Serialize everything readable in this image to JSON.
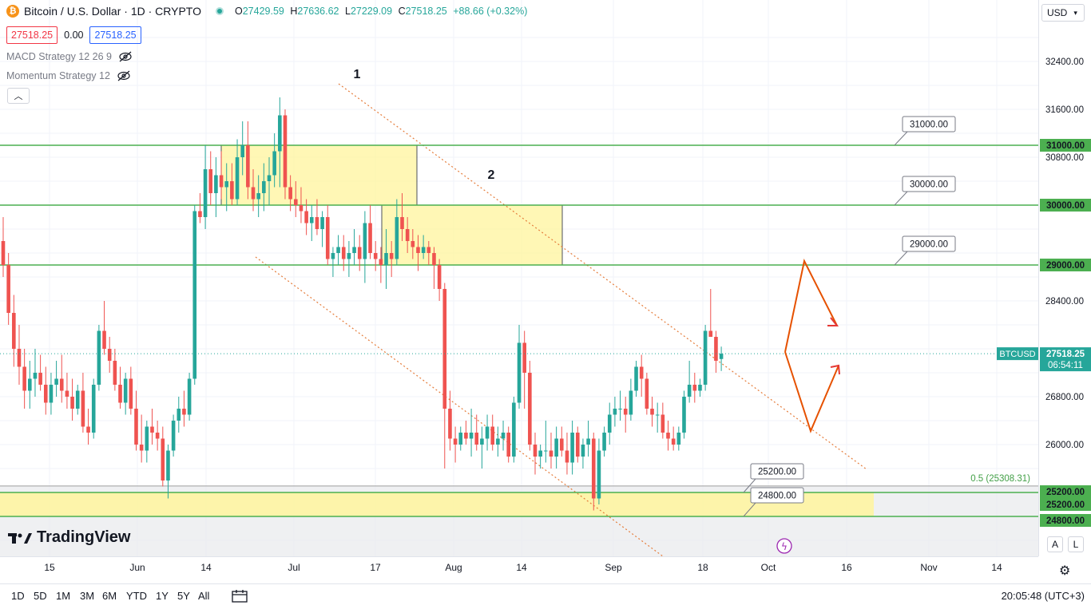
{
  "header": {
    "coin_symbol": "₿",
    "title": "Bitcoin / U.S. Dollar · 1D · CRYPTO",
    "ohlc": [
      {
        "k": "O",
        "v": "27429.59"
      },
      {
        "k": "H",
        "v": "27636.62"
      },
      {
        "k": "L",
        "v": "27229.09"
      },
      {
        "k": "C",
        "v": "27518.25"
      }
    ],
    "change": "+88.66 (+0.32%)",
    "sell_price": "27518.25",
    "spread": "0.00",
    "buy_price": "27518.25",
    "currency": "USD"
  },
  "indicators": [
    {
      "label": "MACD Strategy 12 26 9",
      "icon": "eye-off-icon"
    },
    {
      "label": "Momentum Strategy 12",
      "icon": "eye-off-icon"
    }
  ],
  "logo_text": "TradingView",
  "scale_buttons": [
    "A",
    "L"
  ],
  "timeframes": [
    "1D",
    "5D",
    "1M",
    "3M",
    "6M",
    "YTD",
    "1Y",
    "5Y",
    "All"
  ],
  "clock": "20:05:48 (UTC+3)",
  "colors": {
    "up": "#26a69a",
    "down": "#ef5350",
    "level": "#4caf50",
    "zone": "#fff59d",
    "trend": "#e57c3a"
  },
  "chart_data": {
    "type": "candlestick",
    "symbol": "BTCUSD",
    "last_price": "27518.25",
    "countdown": "06:54:11",
    "ylim": [
      24400,
      33000
    ],
    "price_ticks": [
      "32400.00",
      "31600.00",
      "30800.00",
      "28400.00",
      "26800.00",
      "26000.00"
    ],
    "x_ticks": [
      "15",
      "Jun",
      "14",
      "Jul",
      "17",
      "Aug",
      "14",
      "Sep",
      "18",
      "Oct",
      "16",
      "Nov",
      "14"
    ],
    "candles": [
      [
        29400,
        29800,
        28800,
        29000
      ],
      [
        29000,
        29200,
        28000,
        28200
      ],
      [
        28200,
        28500,
        27300,
        27600
      ],
      [
        27600,
        28000,
        27000,
        27300
      ],
      [
        27300,
        27600,
        26600,
        26900
      ],
      [
        26900,
        27400,
        26600,
        27100
      ],
      [
        27100,
        27600,
        26800,
        27200
      ],
      [
        27200,
        27500,
        26900,
        27000
      ],
      [
        27000,
        27300,
        26500,
        26700
      ],
      [
        26700,
        27200,
        26500,
        27000
      ],
      [
        27000,
        27400,
        26800,
        27100
      ],
      [
        27100,
        27500,
        26700,
        26900
      ],
      [
        26900,
        27200,
        26600,
        26800
      ],
      [
        26800,
        27100,
        26400,
        26600
      ],
      [
        26600,
        27000,
        26500,
        26900
      ],
      [
        26900,
        27200,
        26200,
        26300
      ],
      [
        26300,
        26600,
        26000,
        26200
      ],
      [
        26200,
        27100,
        26100,
        27000
      ],
      [
        27000,
        28000,
        26900,
        27900
      ],
      [
        27900,
        28400,
        27500,
        27600
      ],
      [
        27600,
        27800,
        27200,
        27400
      ],
      [
        27400,
        27600,
        26900,
        27000
      ],
      [
        27000,
        27300,
        26600,
        26700
      ],
      [
        26700,
        27200,
        26500,
        27100
      ],
      [
        27100,
        27300,
        26500,
        26600
      ],
      [
        26600,
        26900,
        25900,
        26000
      ],
      [
        26000,
        26500,
        25700,
        25900
      ],
      [
        25900,
        26400,
        25700,
        26300
      ],
      [
        26300,
        26600,
        26000,
        26200
      ],
      [
        26200,
        26400,
        25900,
        26100
      ],
      [
        26100,
        26300,
        25300,
        25400
      ],
      [
        25400,
        26000,
        25100,
        25900
      ],
      [
        25900,
        26500,
        25800,
        26400
      ],
      [
        26400,
        26800,
        26200,
        26600
      ],
      [
        26600,
        26900,
        26300,
        26500
      ],
      [
        26500,
        27200,
        26400,
        27100
      ],
      [
        27100,
        30000,
        27000,
        29900
      ],
      [
        29900,
        30200,
        29700,
        29800
      ],
      [
        29800,
        31000,
        29600,
        30600
      ],
      [
        30600,
        30900,
        30000,
        30200
      ],
      [
        30200,
        30800,
        29800,
        30500
      ],
      [
        30500,
        30900,
        30100,
        30300
      ],
      [
        30300,
        30700,
        29900,
        30400
      ],
      [
        30400,
        30700,
        30000,
        30100
      ],
      [
        30100,
        31100,
        30000,
        30800
      ],
      [
        30800,
        31400,
        30500,
        31000
      ],
      [
        31000,
        31400,
        30100,
        30300
      ],
      [
        30300,
        30600,
        29900,
        30100
      ],
      [
        30100,
        30500,
        29800,
        30200
      ],
      [
        30200,
        30700,
        29900,
        30400
      ],
      [
        30400,
        30800,
        30000,
        30500
      ],
      [
        30500,
        31200,
        30300,
        30900
      ],
      [
        30900,
        31800,
        30300,
        31500
      ],
      [
        31500,
        31600,
        30100,
        30300
      ],
      [
        30300,
        30500,
        29900,
        30100
      ],
      [
        30100,
        30400,
        29800,
        30000
      ],
      [
        30000,
        30300,
        29700,
        29900
      ],
      [
        29900,
        30100,
        29500,
        29700
      ],
      [
        29700,
        30000,
        29400,
        29800
      ],
      [
        29800,
        30100,
        29500,
        29600
      ],
      [
        29600,
        29900,
        29300,
        29800
      ],
      [
        29800,
        30000,
        29000,
        29100
      ],
      [
        29100,
        29300,
        28800,
        29200
      ],
      [
        29200,
        29500,
        29000,
        29300
      ],
      [
        29300,
        29500,
        28900,
        29100
      ],
      [
        29100,
        29400,
        28800,
        29200
      ],
      [
        29200,
        29600,
        29000,
        29300
      ],
      [
        29300,
        29500,
        28900,
        29100
      ],
      [
        29100,
        29900,
        28700,
        29700
      ],
      [
        29700,
        30000,
        29100,
        29200
      ],
      [
        29200,
        29400,
        28900,
        29100
      ],
      [
        29100,
        29300,
        28700,
        29000
      ],
      [
        29000,
        29600,
        28600,
        29200
      ],
      [
        29200,
        29400,
        28800,
        29100
      ],
      [
        29100,
        30100,
        29000,
        29800
      ],
      [
        29800,
        30200,
        29400,
        29600
      ],
      [
        29600,
        29800,
        29200,
        29400
      ],
      [
        29400,
        29600,
        29100,
        29300
      ],
      [
        29300,
        29500,
        28900,
        29200
      ],
      [
        29200,
        29500,
        29100,
        29300
      ],
      [
        29300,
        29400,
        29000,
        29200
      ],
      [
        29200,
        29300,
        28600,
        29000
      ],
      [
        29000,
        29100,
        28400,
        28600
      ],
      [
        28600,
        28700,
        25600,
        26600
      ],
      [
        26600,
        26900,
        25900,
        26100
      ],
      [
        26100,
        26300,
        25700,
        26000
      ],
      [
        26000,
        26300,
        25900,
        26200
      ],
      [
        26200,
        26400,
        26000,
        26100
      ],
      [
        26100,
        26600,
        25800,
        26200
      ],
      [
        26200,
        26500,
        25900,
        26000
      ],
      [
        26000,
        26300,
        25600,
        26100
      ],
      [
        26100,
        26500,
        25900,
        26300
      ],
      [
        26300,
        26500,
        25900,
        26000
      ],
      [
        26000,
        26300,
        25800,
        26100
      ],
      [
        26100,
        26400,
        25900,
        26200
      ],
      [
        26200,
        26300,
        25700,
        25800
      ],
      [
        25800,
        26800,
        25700,
        26700
      ],
      [
        26700,
        28000,
        26600,
        27700
      ],
      [
        27700,
        27900,
        26600,
        27200
      ],
      [
        27200,
        27400,
        25900,
        26000
      ],
      [
        26000,
        26200,
        25500,
        25800
      ],
      [
        25800,
        26000,
        25600,
        25900
      ],
      [
        25900,
        26400,
        25700,
        25900
      ],
      [
        25900,
        26200,
        25600,
        25800
      ],
      [
        25800,
        26300,
        25600,
        26100
      ],
      [
        26100,
        26300,
        25800,
        25900
      ],
      [
        25900,
        26200,
        25500,
        25700
      ],
      [
        25700,
        26400,
        25500,
        26200
      ],
      [
        26200,
        26300,
        25700,
        25800
      ],
      [
        25800,
        26100,
        25600,
        26000
      ],
      [
        26000,
        26400,
        25800,
        26100
      ],
      [
        26100,
        26200,
        24900,
        25100
      ],
      [
        25100,
        26100,
        25000,
        25900
      ],
      [
        25900,
        26300,
        25800,
        26200
      ],
      [
        26200,
        26700,
        26000,
        26500
      ],
      [
        26500,
        26800,
        26300,
        26600
      ],
      [
        26600,
        26900,
        26400,
        26600
      ],
      [
        26600,
        26800,
        26200,
        26500
      ],
      [
        26500,
        27100,
        26400,
        26900
      ],
      [
        26900,
        27400,
        26800,
        27300
      ],
      [
        27300,
        27500,
        26800,
        27100
      ],
      [
        27100,
        27200,
        26500,
        26600
      ],
      [
        26600,
        26800,
        26300,
        26500
      ],
      [
        26500,
        26700,
        26200,
        26500
      ],
      [
        26500,
        26700,
        26100,
        26200
      ],
      [
        26200,
        26400,
        25900,
        26100
      ],
      [
        26100,
        26300,
        25900,
        26000
      ],
      [
        26000,
        26300,
        25900,
        26200
      ],
      [
        26200,
        26900,
        26100,
        26800
      ],
      [
        26800,
        27400,
        26700,
        27000
      ],
      [
        27000,
        27200,
        26700,
        26900
      ],
      [
        26900,
        27100,
        26800,
        27000
      ],
      [
        27000,
        28000,
        26900,
        27900
      ],
      [
        27900,
        28600,
        27800,
        27800
      ],
      [
        27800,
        27900,
        27200,
        27400
      ],
      [
        27429.59,
        27636.62,
        27229.09,
        27518.25
      ]
    ],
    "levels": [
      {
        "price": 31000,
        "label": "31000.00",
        "axis": "31000.00"
      },
      {
        "price": 30000,
        "label": "30000.00",
        "axis": "30000.00"
      },
      {
        "price": 29000,
        "label": "29000.00",
        "axis": "29000.00"
      },
      {
        "price": 25200,
        "label": "25200.00",
        "axis": "25200.00"
      },
      {
        "price": 24800,
        "label": "24800.00",
        "axis": "24800.00"
      }
    ],
    "extra_axis_label": "25200.00",
    "fib_label": "0.5 (25308.31)",
    "annotations": [
      "1",
      "2"
    ]
  }
}
